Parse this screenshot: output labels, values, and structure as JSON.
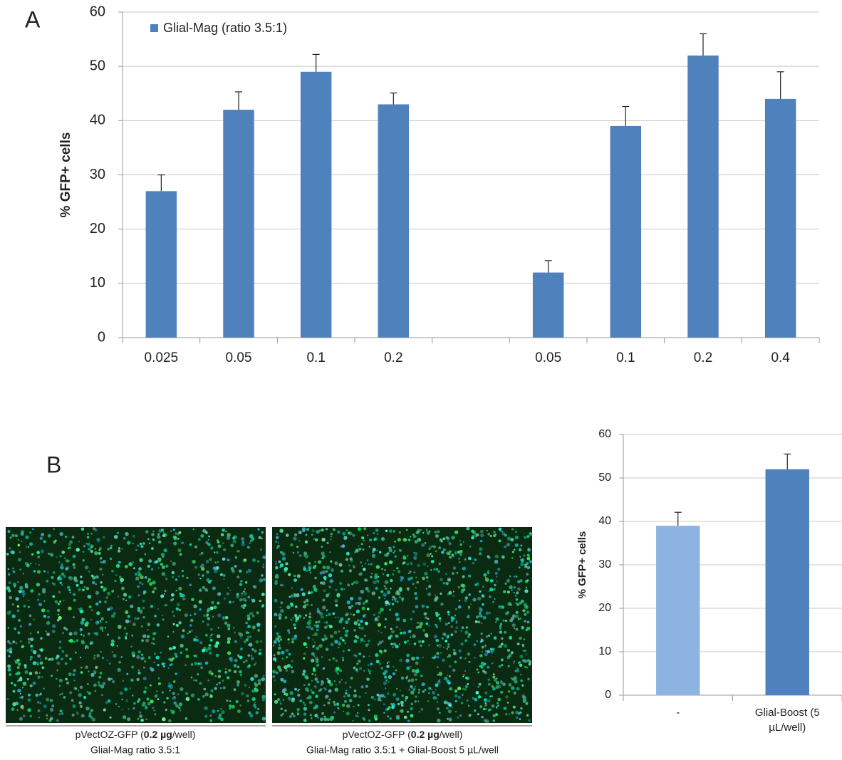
{
  "panels": {
    "a": "A",
    "b": "B"
  },
  "chart_data": [
    {
      "type": "bar",
      "y_label": "% GFP+ cells",
      "categories": [
        "0.025",
        "0.05",
        "0.1",
        "0.2",
        null,
        "0.05",
        "0.1",
        "0.2",
        "0.4"
      ],
      "series": [
        {
          "name": "Glial-Mag (ratio 3.5:1)",
          "color": "#4f81bd",
          "values": [
            27,
            42,
            49,
            43,
            null,
            12,
            39,
            52,
            44
          ],
          "errors": [
            3,
            3.3,
            3.2,
            2.1,
            null,
            2.2,
            3.6,
            4,
            5
          ]
        }
      ],
      "ylim": [
        0,
        60
      ],
      "yticks": [
        0,
        10,
        20,
        30,
        40,
        50,
        60
      ],
      "grid": true,
      "legend": "top-left"
    },
    {
      "type": "bar",
      "y_label": "% GFP+ cells",
      "categories": [
        "-",
        "Glial-Boost (5 µL/well)"
      ],
      "values": [
        39,
        52
      ],
      "errors": [
        3.1,
        3.5
      ],
      "colors": [
        "#8db3e2",
        "#4f81bd"
      ],
      "ylim": [
        0,
        60
      ],
      "yticks": [
        0,
        10,
        20,
        30,
        40,
        50,
        60
      ],
      "grid": true
    }
  ],
  "images": [
    {
      "caption_start": "pVectOZ-GFP (",
      "caption_bold": "0.2 µg",
      "caption_end": "/well)",
      "caption_line2": "Glial-Mag ratio 3.5:1"
    },
    {
      "caption_start": "pVectOZ-GFP (",
      "caption_bold": "0.2 µg",
      "caption_end": "/well)",
      "caption_line2": "Glial-Mag ratio 3.5:1 + Glial-Boost 5 µL/well"
    }
  ]
}
